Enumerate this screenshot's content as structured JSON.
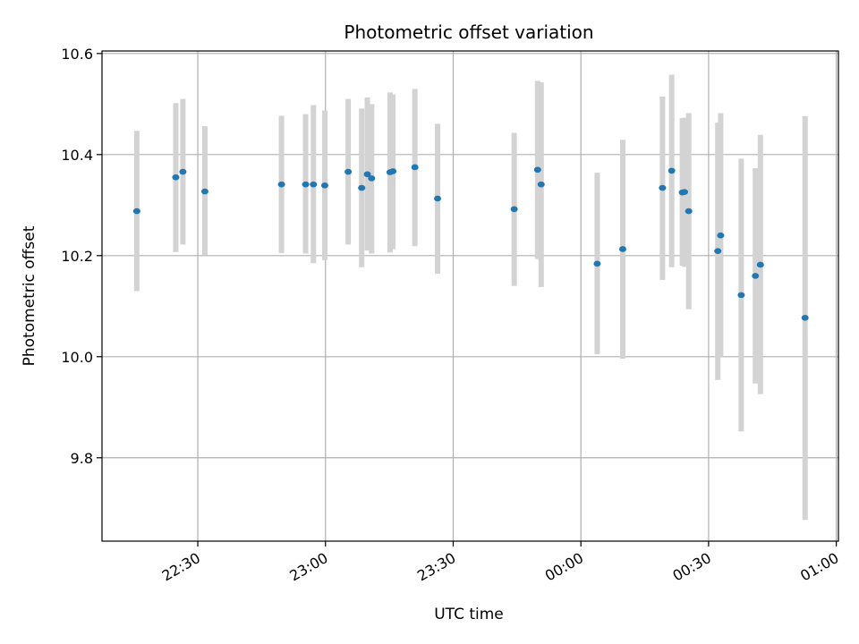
{
  "chart_data": {
    "type": "scatter",
    "title": "Photometric offset variation",
    "xlabel": "UTC time",
    "ylabel": "Photometric offset",
    "x_axis_kind": "time",
    "xlim": [
      "22:07:30",
      "01:00:30"
    ],
    "ylim": [
      9.635,
      10.605
    ],
    "x_ticks": [
      "22:30",
      "23:00",
      "23:30",
      "00:00",
      "00:30",
      "01:00"
    ],
    "y_ticks": [
      9.8,
      10.0,
      10.2,
      10.4,
      10.6
    ],
    "y_tick_labels": [
      "9.8",
      "10.0",
      "10.2",
      "10.4",
      "10.6"
    ],
    "grid": true,
    "marker_color": "#1f77b4",
    "errorbar_color": "#d3d3d3",
    "points": [
      {
        "time": "22:15:40",
        "y": 10.288,
        "err_low": 10.13,
        "err_high": 10.447
      },
      {
        "time": "22:24:50",
        "y": 10.355,
        "err_low": 10.207,
        "err_high": 10.502
      },
      {
        "time": "22:26:30",
        "y": 10.366,
        "err_low": 10.222,
        "err_high": 10.51
      },
      {
        "time": "22:31:40",
        "y": 10.327,
        "err_low": 10.201,
        "err_high": 10.456
      },
      {
        "time": "22:49:40",
        "y": 10.341,
        "err_low": 10.205,
        "err_high": 10.477
      },
      {
        "time": "22:55:20",
        "y": 10.341,
        "err_low": 10.204,
        "err_high": 10.48
      },
      {
        "time": "22:57:10",
        "y": 10.341,
        "err_low": 10.185,
        "err_high": 10.498
      },
      {
        "time": "22:59:50",
        "y": 10.339,
        "err_low": 10.191,
        "err_high": 10.487
      },
      {
        "time": "23:05:20",
        "y": 10.366,
        "err_low": 10.222,
        "err_high": 10.51
      },
      {
        "time": "23:08:30",
        "y": 10.334,
        "err_low": 10.177,
        "err_high": 10.491
      },
      {
        "time": "23:09:50",
        "y": 10.361,
        "err_low": 10.21,
        "err_high": 10.513
      },
      {
        "time": "23:10:50",
        "y": 10.353,
        "err_low": 10.204,
        "err_high": 10.5
      },
      {
        "time": "23:15:10",
        "y": 10.365,
        "err_low": 10.206,
        "err_high": 10.523
      },
      {
        "time": "23:15:50",
        "y": 10.367,
        "err_low": 10.213,
        "err_high": 10.519
      },
      {
        "time": "23:21:00",
        "y": 10.375,
        "err_low": 10.219,
        "err_high": 10.53
      },
      {
        "time": "23:26:20",
        "y": 10.313,
        "err_low": 10.164,
        "err_high": 10.461
      },
      {
        "time": "23:44:20",
        "y": 10.292,
        "err_low": 10.14,
        "err_high": 10.443
      },
      {
        "time": "23:49:50",
        "y": 10.37,
        "err_low": 10.193,
        "err_high": 10.546
      },
      {
        "time": "23:50:40",
        "y": 10.341,
        "err_low": 10.138,
        "err_high": 10.543
      },
      {
        "time": "00:03:50",
        "y": 10.184,
        "err_low": 10.005,
        "err_high": 10.364
      },
      {
        "time": "00:09:50",
        "y": 10.213,
        "err_low": 9.996,
        "err_high": 10.429
      },
      {
        "time": "00:19:10",
        "y": 10.334,
        "err_low": 10.152,
        "err_high": 10.515
      },
      {
        "time": "00:21:20",
        "y": 10.368,
        "err_low": 10.177,
        "err_high": 10.558
      },
      {
        "time": "00:23:50",
        "y": 10.325,
        "err_low": 10.18,
        "err_high": 10.472
      },
      {
        "time": "00:24:20",
        "y": 10.326,
        "err_low": 10.178,
        "err_high": 10.473
      },
      {
        "time": "00:25:20",
        "y": 10.288,
        "err_low": 10.094,
        "err_high": 10.482
      },
      {
        "time": "00:32:10",
        "y": 10.209,
        "err_low": 9.954,
        "err_high": 10.463
      },
      {
        "time": "00:32:50",
        "y": 10.24,
        "err_low": 10.0,
        "err_high": 10.482
      },
      {
        "time": "00:37:40",
        "y": 10.122,
        "err_low": 9.852,
        "err_high": 10.392
      },
      {
        "time": "00:41:00",
        "y": 10.16,
        "err_low": 9.947,
        "err_high": 10.373
      },
      {
        "time": "00:42:10",
        "y": 10.182,
        "err_low": 9.926,
        "err_high": 10.439
      },
      {
        "time": "00:52:40",
        "y": 10.077,
        "err_low": 9.677,
        "err_high": 10.476
      }
    ]
  }
}
